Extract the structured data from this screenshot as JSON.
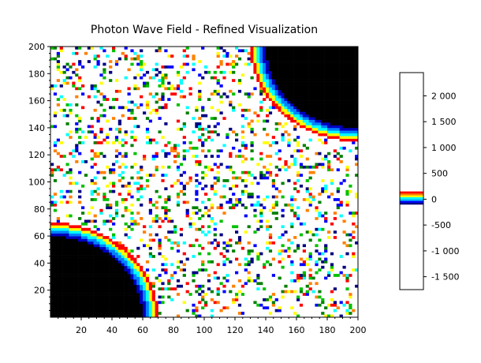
{
  "chart_data": {
    "type": "heatmap",
    "title": "Photon Wave Field - Refined Visualization",
    "xlabel": "",
    "ylabel": "",
    "xlim": [
      0,
      200
    ],
    "ylim": [
      0,
      200
    ],
    "x_ticks": [
      20,
      40,
      60,
      80,
      100,
      120,
      140,
      160,
      180,
      200
    ],
    "y_ticks": [
      20,
      40,
      60,
      80,
      100,
      120,
      140,
      160,
      180,
      200
    ],
    "x_tick_labels": [
      "20",
      "40",
      "60",
      "80",
      "100",
      "120",
      "140",
      "160",
      "180",
      "200"
    ],
    "y_tick_labels": [
      "20",
      "40",
      "60",
      "80",
      "100",
      "120",
      "140",
      "160",
      "180",
      "200"
    ],
    "grid": false,
    "colormap": "jet",
    "colorbar": {
      "range": [
        -1750,
        2450
      ],
      "ticks": [
        2000,
        1500,
        1000,
        500,
        0,
        -500,
        -1000,
        -1500
      ],
      "tick_labels": [
        "2 000",
        "1 500",
        "1 000",
        "500",
        "0",
        "-500",
        "-1 000",
        "-1 500"
      ],
      "colored_band": [
        -100,
        150
      ]
    },
    "grid_size": [
      100,
      100
    ],
    "field_description_values": {
      "corner_regions": [
        "top-right",
        "bottom-left"
      ],
      "corner_color": "#000000",
      "corner_edge_gradient": [
        "#ff0000",
        "#ffff00",
        "#00ffff",
        "#0080ff",
        "#0000c0"
      ],
      "speckle_colors": [
        "#ff0000",
        "#0000ff",
        "#ffff00",
        "#00ffff",
        "#008000",
        "#00c000",
        "#000080",
        "#ff8000"
      ],
      "background_color": "#ffffff"
    }
  }
}
